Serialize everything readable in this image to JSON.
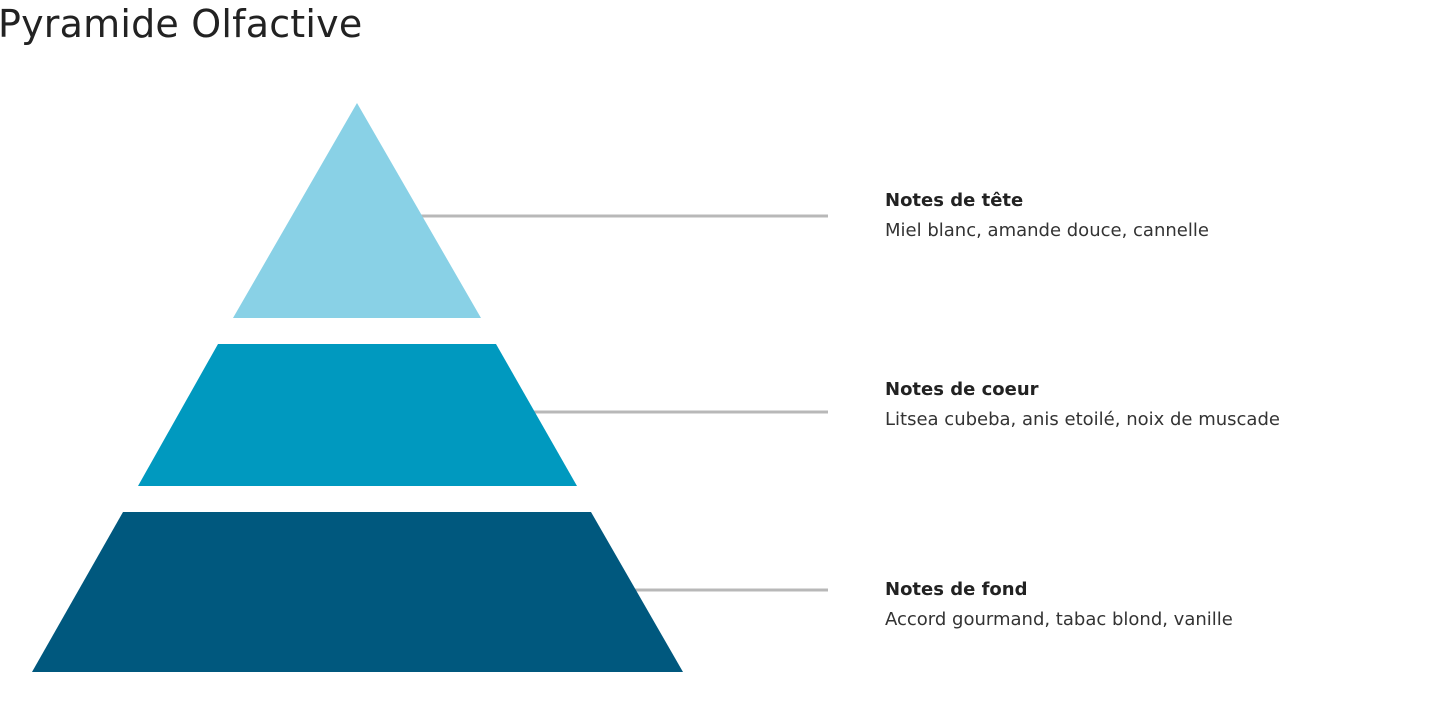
{
  "title": "Pyramide Olfactive",
  "tiers": [
    {
      "id": "tete",
      "label": "Notes de tête",
      "description": "Miel blanc, amande douce, cannelle",
      "color": "#89D1E6"
    },
    {
      "id": "coeur",
      "label": "Notes de coeur",
      "description": "Litsea cubeba, anis etoilé, noix de muscade",
      "color": "#0099BF"
    },
    {
      "id": "fond",
      "label": "Notes de fond",
      "description": "Accord gourmand, tabac blond, vanille",
      "color": "#00587E"
    }
  ],
  "connector_color": "#B8B8B8"
}
